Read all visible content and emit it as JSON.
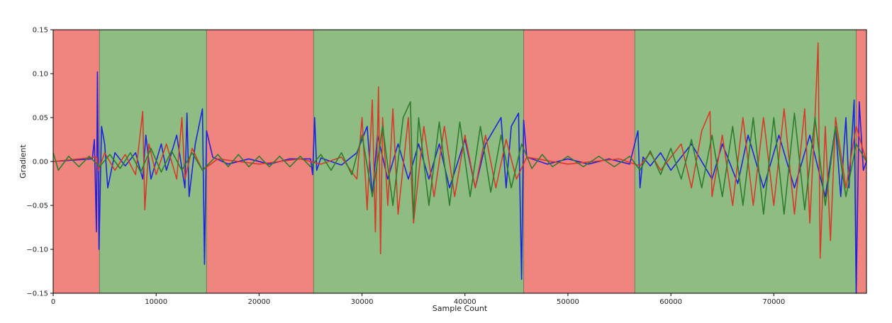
{
  "chart_data": {
    "type": "line",
    "title": "",
    "xlabel": "Sample Count",
    "ylabel": "Gradient",
    "xlim": [
      0,
      79000
    ],
    "ylim": [
      -0.15,
      0.15
    ],
    "x_ticks": [
      0,
      10000,
      20000,
      30000,
      40000,
      50000,
      60000,
      70000
    ],
    "x_tick_labels": [
      "0",
      "10000",
      "20000",
      "30000",
      "40000",
      "50000",
      "60000",
      "70000"
    ],
    "y_ticks": [
      -0.15,
      -0.1,
      -0.05,
      0.0,
      0.05,
      0.1,
      0.15
    ],
    "y_tick_labels": [
      "−0.15",
      "−0.10",
      "−0.05",
      "0.00",
      "0.05",
      "0.10",
      "0.15"
    ],
    "grid": false,
    "legend": "none",
    "regions": [
      {
        "start": 0,
        "end": 4500,
        "state": "red"
      },
      {
        "start": 4500,
        "end": 14900,
        "state": "green"
      },
      {
        "start": 14900,
        "end": 25300,
        "state": "red"
      },
      {
        "start": 25300,
        "end": 45700,
        "state": "green"
      },
      {
        "start": 45700,
        "end": 56500,
        "state": "red"
      },
      {
        "start": 56500,
        "end": 78000,
        "state": "green"
      },
      {
        "start": 78000,
        "end": 79000,
        "state": "red"
      }
    ],
    "region_colors": {
      "red": "#f08580",
      "green": "#8fbc82"
    },
    "series": [
      {
        "color": "#2222dd",
        "points": [
          [
            0,
            0
          ],
          [
            3800,
            0.003
          ],
          [
            4000,
            0.025
          ],
          [
            4200,
            -0.08
          ],
          [
            4300,
            0.102
          ],
          [
            4450,
            -0.1
          ],
          [
            4700,
            0.04
          ],
          [
            5000,
            0.02
          ],
          [
            5300,
            -0.03
          ],
          [
            6000,
            0.01
          ],
          [
            7000,
            -0.005
          ],
          [
            8000,
            0.01
          ],
          [
            8700,
            -0.02
          ],
          [
            9000,
            0.03
          ],
          [
            9500,
            -0.02
          ],
          [
            10500,
            0.02
          ],
          [
            11000,
            -0.01
          ],
          [
            12000,
            0.03
          ],
          [
            12800,
            -0.03
          ],
          [
            13000,
            0.055
          ],
          [
            13200,
            -0.04
          ],
          [
            13800,
            0.02
          ],
          [
            14500,
            0.06
          ],
          [
            14700,
            -0.117
          ],
          [
            14900,
            0.035
          ],
          [
            15500,
            0.005
          ],
          [
            17000,
            -0.003
          ],
          [
            19000,
            0.003
          ],
          [
            21000,
            -0.003
          ],
          [
            23000,
            0.003
          ],
          [
            25000,
            0.003
          ],
          [
            25200,
            -0.015
          ],
          [
            25400,
            0.05
          ],
          [
            25600,
            -0.01
          ],
          [
            26000,
            0.004
          ],
          [
            28000,
            -0.004
          ],
          [
            29500,
            0.01
          ],
          [
            30500,
            0.04
          ],
          [
            31000,
            -0.04
          ],
          [
            31500,
            0.03
          ],
          [
            32500,
            -0.02
          ],
          [
            33500,
            0.02
          ],
          [
            34500,
            -0.02
          ],
          [
            35500,
            0.02
          ],
          [
            36500,
            -0.02
          ],
          [
            37500,
            0.02
          ],
          [
            38500,
            -0.03
          ],
          [
            40000,
            0.025
          ],
          [
            41000,
            -0.03
          ],
          [
            42000,
            0.02
          ],
          [
            43500,
            0.05
          ],
          [
            44000,
            -0.03
          ],
          [
            44500,
            0.04
          ],
          [
            45200,
            0.055
          ],
          [
            45500,
            -0.134
          ],
          [
            45700,
            0.047
          ],
          [
            46000,
            0.005
          ],
          [
            48000,
            -0.003
          ],
          [
            50000,
            0.003
          ],
          [
            52000,
            -0.003
          ],
          [
            54000,
            0.003
          ],
          [
            56000,
            -0.003
          ],
          [
            56800,
            0.035
          ],
          [
            57000,
            -0.03
          ],
          [
            57300,
            0.005
          ],
          [
            58000,
            -0.005
          ],
          [
            59000,
            0.01
          ],
          [
            60000,
            -0.01
          ],
          [
            62000,
            0.02
          ],
          [
            64000,
            -0.02
          ],
          [
            65000,
            0.02
          ],
          [
            66500,
            -0.025
          ],
          [
            67500,
            0.03
          ],
          [
            69000,
            -0.03
          ],
          [
            70500,
            0.03
          ],
          [
            72000,
            -0.03
          ],
          [
            73500,
            0.03
          ],
          [
            75000,
            -0.04
          ],
          [
            76000,
            0.04
          ],
          [
            76500,
            -0.04
          ],
          [
            77000,
            0.05
          ],
          [
            77300,
            -0.03
          ],
          [
            77800,
            0.07
          ],
          [
            78000,
            -0.15
          ],
          [
            78300,
            0.068
          ],
          [
            78700,
            -0.01
          ],
          [
            79000,
            0
          ]
        ]
      },
      {
        "color": "#d83a2a",
        "points": [
          [
            0,
            0
          ],
          [
            4200,
            0.005
          ],
          [
            4400,
            -0.01
          ],
          [
            5000,
            0.01
          ],
          [
            6000,
            -0.01
          ],
          [
            7000,
            0.008
          ],
          [
            8000,
            -0.015
          ],
          [
            8700,
            0.057
          ],
          [
            8900,
            -0.055
          ],
          [
            9300,
            0.02
          ],
          [
            10000,
            -0.015
          ],
          [
            11000,
            0.02
          ],
          [
            12000,
            -0.02
          ],
          [
            12500,
            0.05
          ],
          [
            12800,
            -0.02
          ],
          [
            13500,
            0.015
          ],
          [
            14500,
            -0.01
          ],
          [
            16000,
            0.003
          ],
          [
            20000,
            -0.003
          ],
          [
            24000,
            0.003
          ],
          [
            26000,
            -0.003
          ],
          [
            28000,
            0.005
          ],
          [
            29500,
            -0.02
          ],
          [
            30000,
            0.05
          ],
          [
            30500,
            -0.055
          ],
          [
            31000,
            0.07
          ],
          [
            31300,
            -0.08
          ],
          [
            31600,
            0.085
          ],
          [
            31800,
            -0.105
          ],
          [
            32000,
            0.05
          ],
          [
            32500,
            -0.05
          ],
          [
            33000,
            0.06
          ],
          [
            33500,
            -0.06
          ],
          [
            34500,
            0.05
          ],
          [
            35000,
            -0.07
          ],
          [
            36000,
            0.04
          ],
          [
            37000,
            -0.04
          ],
          [
            38000,
            0.04
          ],
          [
            39000,
            -0.04
          ],
          [
            40000,
            0.03
          ],
          [
            41000,
            -0.03
          ],
          [
            42000,
            0.03
          ],
          [
            43000,
            -0.03
          ],
          [
            44000,
            0.025
          ],
          [
            45000,
            -0.02
          ],
          [
            46000,
            0.005
          ],
          [
            50000,
            -0.003
          ],
          [
            55000,
            0.003
          ],
          [
            57000,
            -0.005
          ],
          [
            58000,
            0.01
          ],
          [
            59000,
            -0.01
          ],
          [
            61000,
            0.02
          ],
          [
            62000,
            -0.03
          ],
          [
            63000,
            0.035
          ],
          [
            63800,
            0.057
          ],
          [
            64000,
            -0.04
          ],
          [
            65000,
            0.03
          ],
          [
            66000,
            -0.05
          ],
          [
            67000,
            0.05
          ],
          [
            68000,
            -0.05
          ],
          [
            69000,
            0.05
          ],
          [
            70000,
            -0.05
          ],
          [
            71000,
            0.06
          ],
          [
            72000,
            -0.06
          ],
          [
            73000,
            0.06
          ],
          [
            73500,
            -0.07
          ],
          [
            74000,
            0.05
          ],
          [
            74300,
            0.135
          ],
          [
            74500,
            -0.11
          ],
          [
            75000,
            0.04
          ],
          [
            75500,
            -0.09
          ],
          [
            76000,
            0.05
          ],
          [
            77000,
            -0.03
          ],
          [
            78000,
            0.04
          ],
          [
            79000,
            0
          ]
        ]
      },
      {
        "color": "#2e7d2e",
        "points": [
          [
            0,
            0.01
          ],
          [
            500,
            -0.01
          ],
          [
            1500,
            0.006
          ],
          [
            2500,
            -0.006
          ],
          [
            3500,
            0.006
          ],
          [
            4500,
            -0.006
          ],
          [
            5500,
            0.008
          ],
          [
            6500,
            -0.008
          ],
          [
            7500,
            0.01
          ],
          [
            8500,
            -0.012
          ],
          [
            9500,
            0.015
          ],
          [
            10500,
            -0.012
          ],
          [
            11500,
            0.012
          ],
          [
            12500,
            -0.01
          ],
          [
            13500,
            0.01
          ],
          [
            14500,
            -0.01
          ],
          [
            16000,
            0.008
          ],
          [
            17000,
            -0.006
          ],
          [
            18000,
            0.008
          ],
          [
            19000,
            -0.006
          ],
          [
            20000,
            0.006
          ],
          [
            21000,
            -0.006
          ],
          [
            22000,
            0.006
          ],
          [
            23000,
            -0.006
          ],
          [
            24000,
            0.006
          ],
          [
            25000,
            -0.006
          ],
          [
            26000,
            0.008
          ],
          [
            27000,
            -0.01
          ],
          [
            28000,
            0.01
          ],
          [
            29000,
            -0.015
          ],
          [
            30000,
            0.03
          ],
          [
            31000,
            -0.04
          ],
          [
            32000,
            0.04
          ],
          [
            33000,
            -0.05
          ],
          [
            34000,
            0.05
          ],
          [
            34700,
            0.068
          ],
          [
            35000,
            -0.065
          ],
          [
            35500,
            0.05
          ],
          [
            36500,
            -0.05
          ],
          [
            37500,
            0.045
          ],
          [
            38500,
            -0.05
          ],
          [
            39500,
            0.045
          ],
          [
            40500,
            -0.04
          ],
          [
            41500,
            0.04
          ],
          [
            42500,
            -0.035
          ],
          [
            43500,
            0.03
          ],
          [
            44500,
            -0.03
          ],
          [
            45500,
            0.02
          ],
          [
            46500,
            -0.008
          ],
          [
            47500,
            0.008
          ],
          [
            48500,
            -0.006
          ],
          [
            50000,
            0.006
          ],
          [
            51500,
            -0.006
          ],
          [
            53000,
            0.006
          ],
          [
            54500,
            -0.006
          ],
          [
            56000,
            0.006
          ],
          [
            57000,
            -0.01
          ],
          [
            58000,
            0.012
          ],
          [
            59000,
            -0.015
          ],
          [
            60000,
            0.015
          ],
          [
            61000,
            -0.02
          ],
          [
            62000,
            0.025
          ],
          [
            63000,
            -0.03
          ],
          [
            64000,
            0.03
          ],
          [
            65000,
            -0.04
          ],
          [
            66000,
            0.04
          ],
          [
            67000,
            -0.05
          ],
          [
            68000,
            0.05
          ],
          [
            69000,
            -0.06
          ],
          [
            70000,
            0.05
          ],
          [
            71000,
            -0.06
          ],
          [
            72000,
            0.055
          ],
          [
            73000,
            -0.055
          ],
          [
            74000,
            0.05
          ],
          [
            75000,
            -0.05
          ],
          [
            76000,
            0.04
          ],
          [
            77000,
            -0.04
          ],
          [
            78000,
            0.02
          ],
          [
            79000,
            0
          ]
        ]
      }
    ]
  }
}
